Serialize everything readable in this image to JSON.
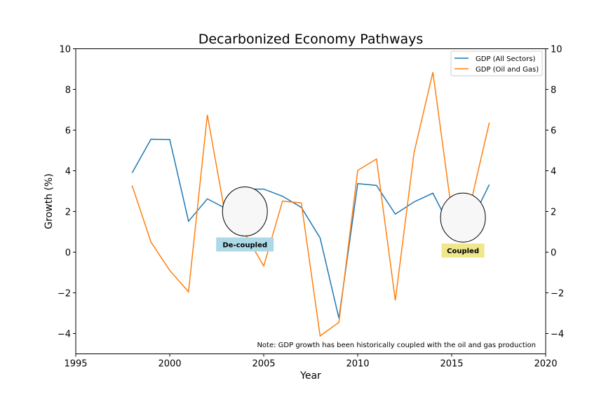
{
  "chart_data": {
    "type": "line",
    "title": "Decarbonized Economy Pathways",
    "xlabel": "Year",
    "ylabel": "Growth (%)",
    "xlim": [
      1995,
      2020
    ],
    "ylim": [
      -5,
      10
    ],
    "x_ticks": [
      "1995",
      "2000",
      "2005",
      "2010",
      "2015",
      "2020"
    ],
    "y_ticks": [
      "−4",
      "−2",
      "0",
      "2",
      "4",
      "6",
      "8",
      "10"
    ],
    "right_axis_ticks": [
      "−4",
      "−2",
      "0",
      "2",
      "4",
      "6",
      "8",
      "10"
    ],
    "grid": false,
    "legend_position": "top-right",
    "x": [
      1998,
      1999,
      2000,
      2001,
      2002,
      2003,
      2004,
      2005,
      2006,
      2007,
      2008,
      2009,
      2010,
      2011,
      2012,
      2013,
      2014,
      2015,
      2016,
      2017
    ],
    "series": [
      {
        "name": "GDP (All Sectors)",
        "color": "#1f77b4",
        "values": [
          3.9,
          5.55,
          5.54,
          1.52,
          2.62,
          2.14,
          3.1,
          3.1,
          2.75,
          2.2,
          0.7,
          -3.25,
          3.37,
          3.28,
          1.87,
          2.47,
          2.9,
          1.08,
          1.42,
          3.32
        ]
      },
      {
        "name": "GDP (Oil and Gas)",
        "color": "#ff7f0e",
        "values": [
          3.27,
          0.5,
          -0.9,
          -1.95,
          6.75,
          1.6,
          0.9,
          -0.68,
          2.51,
          2.42,
          -4.12,
          -3.45,
          4.02,
          4.58,
          -2.37,
          4.9,
          8.85,
          2.0,
          2.36,
          6.37
        ]
      }
    ],
    "annotations": [
      {
        "text": "De-coupled",
        "at_x": 2004,
        "at_y": 2.0,
        "box_color": "#add8e6"
      },
      {
        "text": "Coupled",
        "at_x": 2015.6,
        "at_y": 1.7,
        "box_color": "#f0e68c"
      }
    ],
    "note": "Note: GDP growth has been historically coupled with the oil and gas production"
  }
}
